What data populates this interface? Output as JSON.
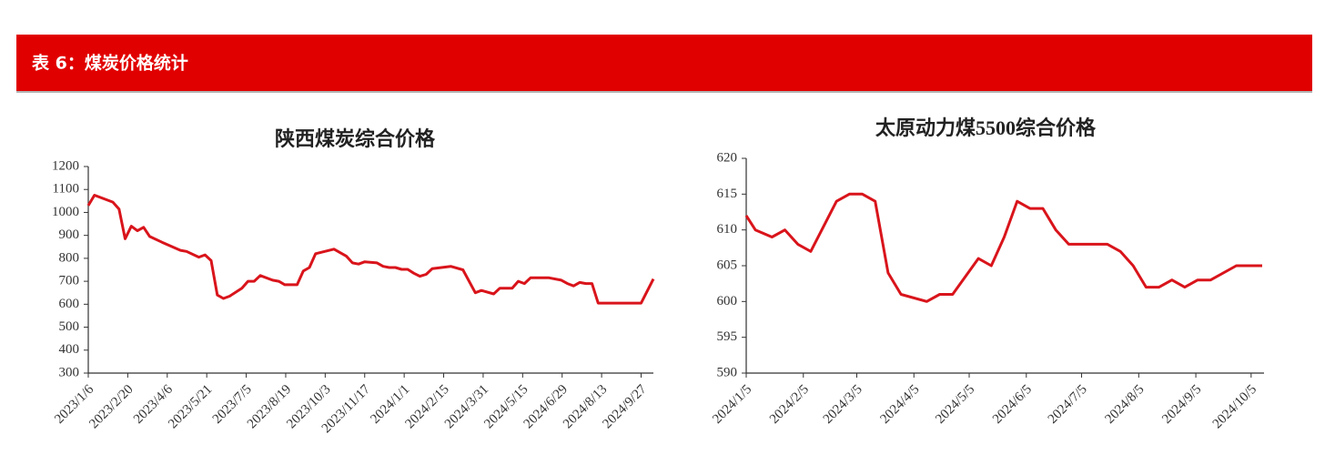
{
  "header": {
    "title": "表 6：煤炭价格统计"
  },
  "chart_data": [
    {
      "type": "line",
      "title": "陕西煤炭综合价格",
      "x": [
        "2023/1/6",
        "2023/1/13",
        "2023/2/3",
        "2023/2/10",
        "2023/2/17",
        "2023/2/24",
        "2023/3/3",
        "2023/3/10",
        "2023/3/17",
        "2023/3/31",
        "2023/4/21",
        "2023/4/28",
        "2023/5/12",
        "2023/5/19",
        "2023/5/26",
        "2023/6/2",
        "2023/6/9",
        "2023/6/16",
        "2023/6/30",
        "2023/7/7",
        "2023/7/14",
        "2023/7/21",
        "2023/8/4",
        "2023/8/11",
        "2023/8/18",
        "2023/9/1",
        "2023/9/8",
        "2023/9/15",
        "2023/9/22",
        "2023/10/13",
        "2023/10/27",
        "2023/11/3",
        "2023/11/10",
        "2023/11/17",
        "2023/12/1",
        "2023/12/8",
        "2023/12/15",
        "2023/12/22",
        "2023/12/29",
        "2024/1/5",
        "2024/1/12",
        "2024/1/19",
        "2024/1/26",
        "2024/2/2",
        "2024/2/23",
        "2024/3/8",
        "2024/3/22",
        "2024/3/29",
        "2024/4/12",
        "2024/4/19",
        "2024/5/3",
        "2024/5/10",
        "2024/5/17",
        "2024/5/24",
        "2024/6/14",
        "2024/6/28",
        "2024/7/5",
        "2024/7/12",
        "2024/7/19",
        "2024/7/26",
        "2024/8/2",
        "2024/8/9",
        "2024/9/27",
        "2024/10/11"
      ],
      "series": [
        {
          "color": "#d9141b",
          "values": [
            1030,
            1075,
            1045,
            1015,
            885,
            940,
            920,
            935,
            895,
            870,
            835,
            830,
            805,
            815,
            790,
            640,
            625,
            635,
            670,
            700,
            700,
            725,
            705,
            700,
            685,
            685,
            745,
            760,
            820,
            840,
            810,
            780,
            775,
            785,
            780,
            765,
            760,
            760,
            752,
            752,
            735,
            722,
            730,
            755,
            765,
            750,
            650,
            660,
            645,
            670,
            670,
            700,
            690,
            715,
            715,
            705,
            690,
            680,
            695,
            690,
            690,
            605,
            605,
            710
          ]
        }
      ],
      "xlim": [
        "2023/1/6",
        "2024/10/11"
      ],
      "xticks": [
        "2023/1/6",
        "2023/2/20",
        "2023/4/6",
        "2023/5/21",
        "2023/7/5",
        "2023/8/19",
        "2023/10/3",
        "2023/11/17",
        "2024/1/1",
        "2024/2/15",
        "2024/3/31",
        "2024/5/15",
        "2024/6/29",
        "2024/8/13",
        "2024/9/27"
      ],
      "ylim": [
        300,
        1200
      ],
      "yticks": [
        300,
        400,
        500,
        600,
        700,
        800,
        900,
        1000,
        1100,
        1200
      ]
    },
    {
      "type": "line",
      "title": "太原动力煤5500综合价格",
      "x": [
        "2024/1/5",
        "2024/1/10",
        "2024/1/19",
        "2024/1/26",
        "2024/2/2",
        "2024/2/9",
        "2024/2/23",
        "2024/3/1",
        "2024/3/8",
        "2024/3/15",
        "2024/3/22",
        "2024/3/29",
        "2024/4/12",
        "2024/4/19",
        "2024/4/26",
        "2024/5/10",
        "2024/5/17",
        "2024/5/24",
        "2024/5/31",
        "2024/6/7",
        "2024/6/14",
        "2024/6/21",
        "2024/6/28",
        "2024/7/5",
        "2024/7/19",
        "2024/7/26",
        "2024/8/2",
        "2024/8/9",
        "2024/8/16",
        "2024/8/23",
        "2024/8/30",
        "2024/9/6",
        "2024/9/13",
        "2024/9/27",
        "2024/10/11"
      ],
      "series": [
        {
          "color": "#d9141b",
          "values": [
            612,
            610,
            609,
            610,
            608,
            607,
            614,
            615,
            615,
            614,
            604,
            601,
            600,
            601,
            601,
            606,
            605,
            609,
            614,
            613,
            613,
            610,
            608,
            608,
            608,
            607,
            605,
            602,
            602,
            603,
            602,
            603,
            603,
            605,
            605
          ]
        }
      ],
      "xlim": [
        "2024/1/5",
        "2024/10/12"
      ],
      "xticks": [
        "2024/1/5",
        "2024/2/5",
        "2024/3/5",
        "2024/4/5",
        "2024/5/5",
        "2024/6/5",
        "2024/7/5",
        "2024/8/5",
        "2024/9/5",
        "2024/10/5"
      ],
      "ylim": [
        590,
        620
      ],
      "yticks": [
        590,
        595,
        600,
        605,
        610,
        615,
        620
      ]
    }
  ]
}
